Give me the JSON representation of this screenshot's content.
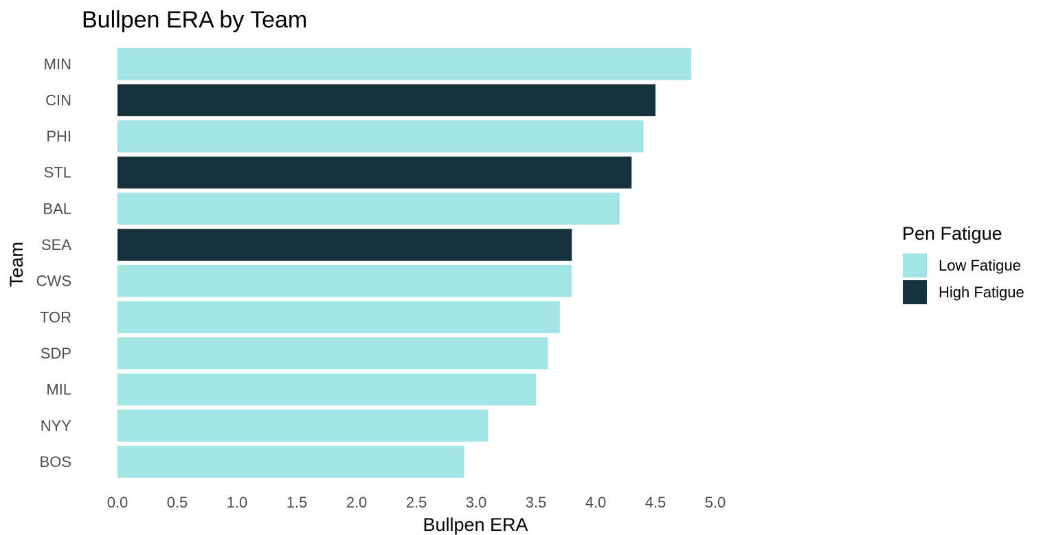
{
  "chart_data": {
    "type": "bar",
    "orientation": "horizontal",
    "title": "Bullpen ERA by Team",
    "xlabel": "Bullpen ERA",
    "ylabel": "Team",
    "xlim": [
      0,
      5
    ],
    "x_ticks": [
      "0.0",
      "0.5",
      "1.0",
      "1.5",
      "2.0",
      "2.5",
      "3.0",
      "3.5",
      "4.0",
      "4.5",
      "5.0"
    ],
    "grid": false,
    "legend": {
      "title": "Pen Fatigue",
      "placement": "right",
      "entries": [
        {
          "label": "Low Fatigue",
          "color": "#a1e5e4"
        },
        {
          "label": "High Fatigue",
          "color": "#15313c"
        }
      ]
    },
    "categories": [
      "MIN",
      "CIN",
      "PHI",
      "STL",
      "BAL",
      "SEA",
      "CWS",
      "TOR",
      "SDP",
      "MIL",
      "NYY",
      "BOS"
    ],
    "values": [
      4.8,
      4.5,
      4.4,
      4.3,
      4.2,
      3.8,
      3.8,
      3.7,
      3.6,
      3.5,
      3.1,
      2.9
    ],
    "groups": [
      "Low Fatigue",
      "High Fatigue",
      "Low Fatigue",
      "High Fatigue",
      "Low Fatigue",
      "High Fatigue",
      "Low Fatigue",
      "Low Fatigue",
      "Low Fatigue",
      "Low Fatigue",
      "Low Fatigue",
      "Low Fatigue"
    ]
  }
}
